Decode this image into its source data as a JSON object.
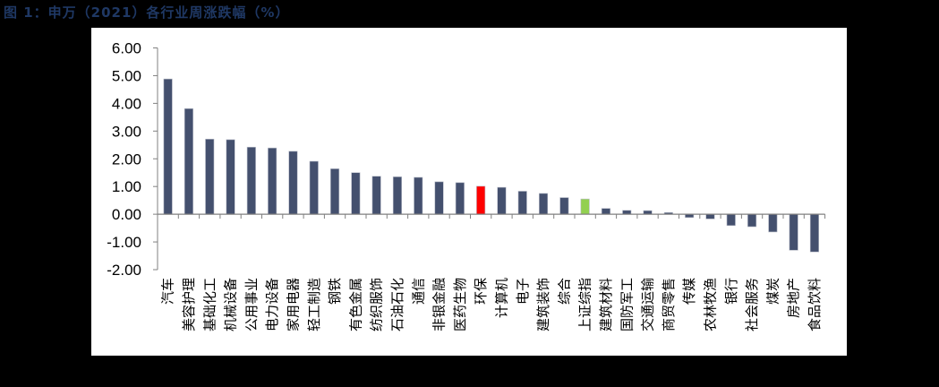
{
  "figure": {
    "title": "图 1：申万（2021）各行业周涨跌幅（%）"
  },
  "colors": {
    "default_bar": "#44506E",
    "highlight_red": "#FF0000",
    "highlight_green": "#92D050",
    "title_color": "#1F3864",
    "axis": "#808080"
  },
  "chart_data": {
    "type": "bar",
    "title": "申万（2021）各行业周涨跌幅（%）",
    "xlabel": "",
    "ylabel": "",
    "ylim": [
      -2.0,
      6.0
    ],
    "yticks": [
      "6.00",
      "5.00",
      "4.00",
      "3.00",
      "2.00",
      "1.00",
      "0.00",
      "-1.00",
      "-2.00"
    ],
    "grid": false,
    "legend": null,
    "categories": [
      "汽车",
      "美容护理",
      "基础化工",
      "机械设备",
      "公用事业",
      "电力设备",
      "家用电器",
      "轻工制造",
      "钢铁",
      "有色金属",
      "纺织服饰",
      "石油石化",
      "通信",
      "非银金融",
      "医药生物",
      "环保",
      "计算机",
      "电子",
      "建筑装饰",
      "综合",
      "上证综指",
      "建筑材料",
      "国防军工",
      "交通运输",
      "商贸零售",
      "传媒",
      "农林牧渔",
      "银行",
      "社会服务",
      "煤炭",
      "房地产",
      "食品饮料"
    ],
    "values": [
      4.88,
      3.81,
      2.71,
      2.69,
      2.42,
      2.39,
      2.27,
      1.91,
      1.64,
      1.5,
      1.37,
      1.35,
      1.33,
      1.17,
      1.14,
      1.01,
      0.97,
      0.83,
      0.75,
      0.6,
      0.55,
      0.21,
      0.14,
      0.13,
      0.06,
      -0.12,
      -0.17,
      -0.41,
      -0.45,
      -0.64,
      -1.3,
      -1.36
    ],
    "highlights": {
      "环保": "red",
      "上证综指": "green"
    }
  }
}
